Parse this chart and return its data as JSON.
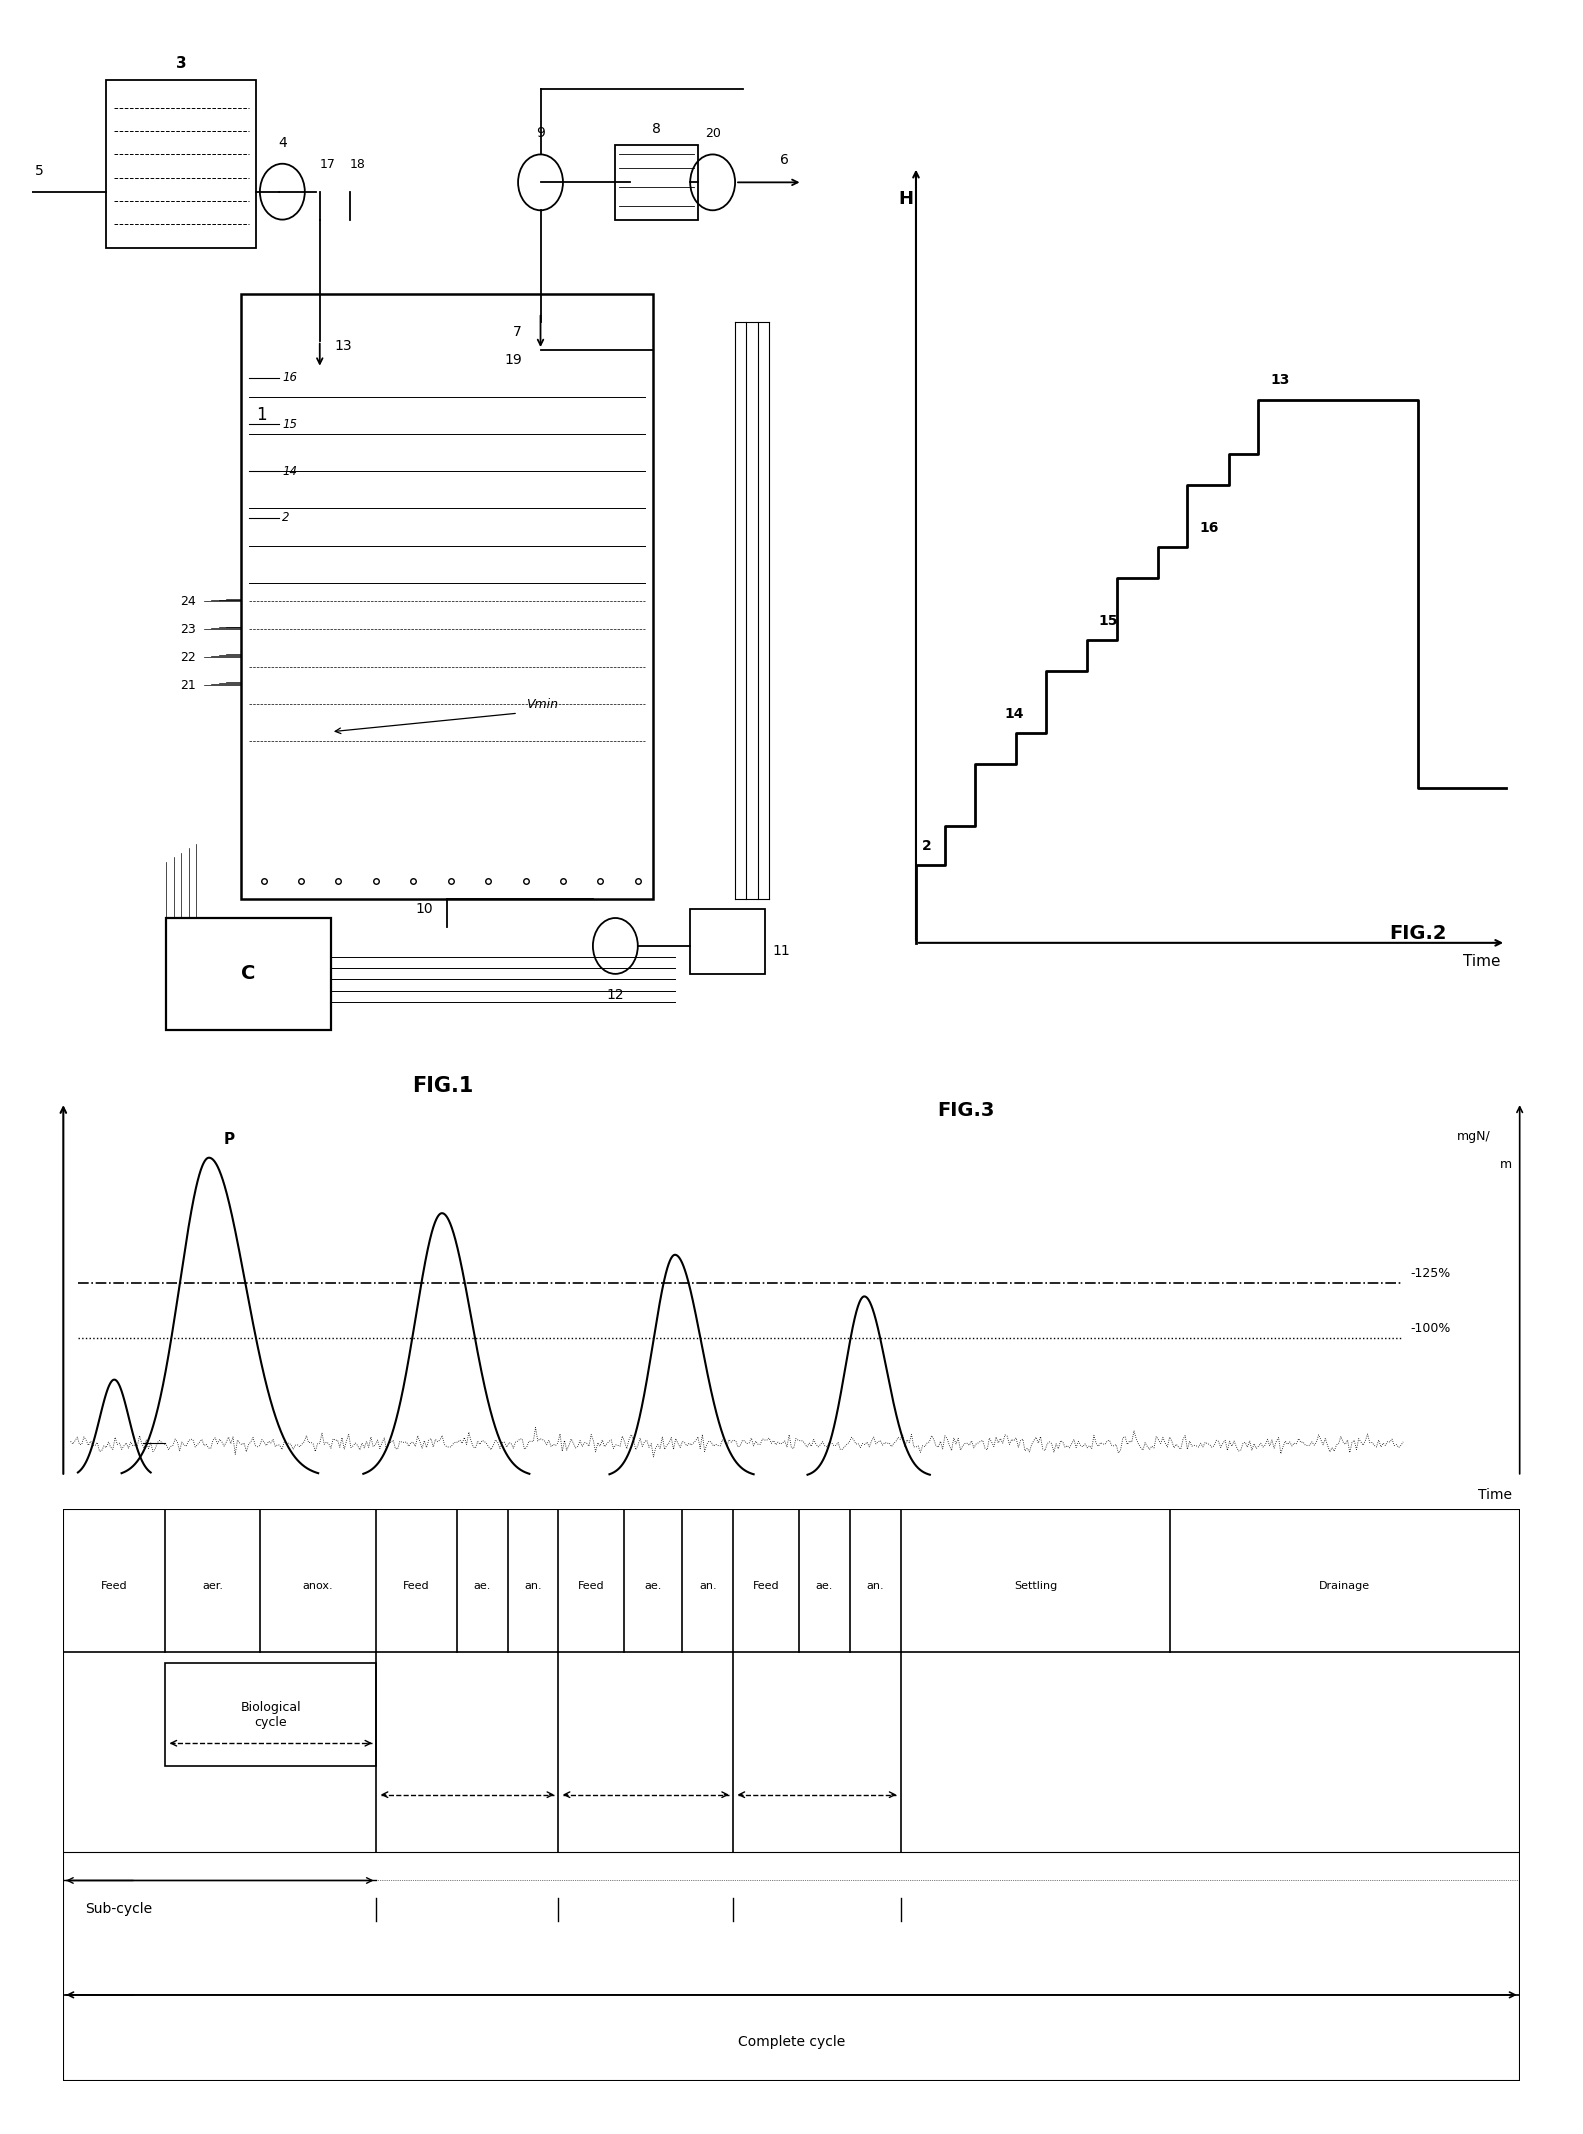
{
  "fig1_title": "FIG.1",
  "fig2_title": "FIG.2",
  "fig3_title": "FIG.3",
  "fig2_xlabel": "Time",
  "fig3_ylabel": "mgN/\nm",
  "fig3_xlabel": "Time",
  "percent_125": "-125%",
  "percent_100": "-100%",
  "label_P": "P",
  "label_Vmin": "Vmin",
  "bio_cycle_label": "Biological\ncycle",
  "subcycle_label": "Sub-cycle",
  "complete_cycle_label": "Complete cycle",
  "background_color": "#ffffff",
  "line_color": "#000000"
}
